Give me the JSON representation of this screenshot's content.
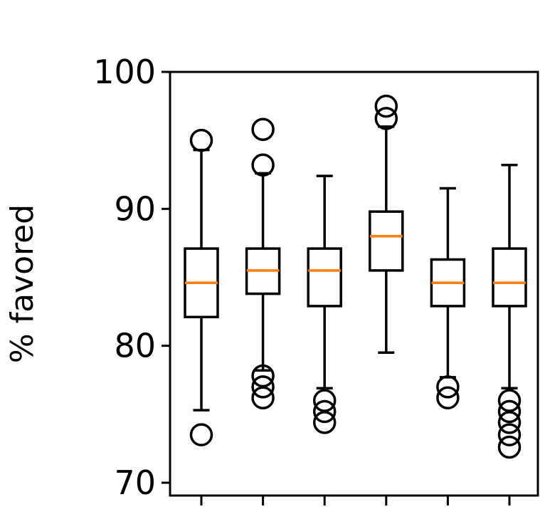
{
  "chart_data": {
    "type": "box",
    "ylabel": "% favored",
    "ylim": [
      70,
      100
    ],
    "yticks": [
      70,
      80,
      90,
      100
    ],
    "ytick_labels": [
      "70",
      "80",
      "90",
      "100"
    ],
    "categories": [
      "",
      "",
      "",
      "",
      "",
      ""
    ],
    "grid": false,
    "colors": {
      "box": "#000000",
      "median": "#ff7f0e"
    },
    "boxes": [
      {
        "whisker_low": 75.3,
        "q1": 82.1,
        "median": 84.6,
        "q3": 87.1,
        "whisker_high": 94.3,
        "outliers": [
          95.0,
          73.5
        ]
      },
      {
        "whisker_low": 78.2,
        "q1": 83.8,
        "median": 85.5,
        "q3": 87.1,
        "whisker_high": 92.6,
        "outliers": [
          95.8,
          93.2,
          77.8,
          77.0,
          76.2
        ]
      },
      {
        "whisker_low": 76.9,
        "q1": 82.9,
        "median": 85.5,
        "q3": 87.1,
        "whisker_high": 92.4,
        "outliers": [
          76.0,
          75.2,
          74.4
        ]
      },
      {
        "whisker_low": 79.5,
        "q1": 85.5,
        "median": 88.0,
        "q3": 89.8,
        "whisker_high": 96.0,
        "outliers": [
          97.5,
          96.6
        ]
      },
      {
        "whisker_low": 77.7,
        "q1": 82.9,
        "median": 84.6,
        "q3": 86.3,
        "whisker_high": 91.5,
        "outliers": [
          77.0,
          76.2
        ]
      },
      {
        "whisker_low": 76.9,
        "q1": 82.9,
        "median": 84.6,
        "q3": 87.1,
        "whisker_high": 93.2,
        "outliers": [
          76.0,
          75.2,
          74.4,
          73.5,
          72.6
        ]
      }
    ]
  }
}
